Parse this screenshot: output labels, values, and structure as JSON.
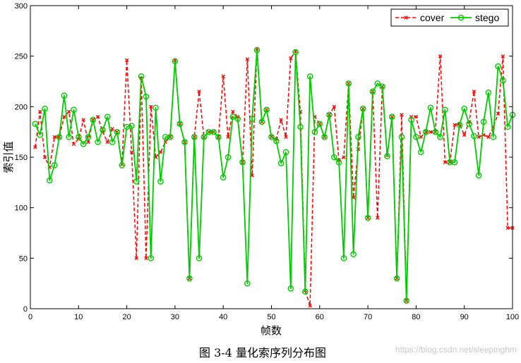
{
  "chart_data": {
    "type": "line",
    "xlabel": "帧数",
    "ylabel": "索引值",
    "xlim": [
      0,
      100
    ],
    "ylim": [
      0,
      300
    ],
    "xticks": [
      0,
      10,
      20,
      30,
      40,
      50,
      60,
      70,
      80,
      90,
      100
    ],
    "yticks": [
      0,
      50,
      100,
      150,
      200,
      250,
      300
    ],
    "legend_position": "top-right",
    "series": [
      {
        "name": "cover",
        "color": "#ff0000",
        "style": "dashed",
        "marker": "x",
        "x": [
          1,
          2,
          3,
          4,
          5,
          6,
          7,
          8,
          9,
          10,
          11,
          12,
          13,
          14,
          15,
          16,
          17,
          18,
          19,
          20,
          21,
          22,
          23,
          24,
          25,
          26,
          27,
          28,
          29,
          30,
          31,
          32,
          33,
          34,
          35,
          36,
          37,
          38,
          39,
          40,
          41,
          42,
          43,
          44,
          45,
          46,
          47,
          48,
          49,
          50,
          51,
          52,
          53,
          54,
          55,
          56,
          57,
          58,
          59,
          60,
          61,
          62,
          63,
          64,
          65,
          66,
          67,
          68,
          69,
          70,
          71,
          72,
          73,
          74,
          75,
          76,
          77,
          78,
          79,
          80,
          81,
          82,
          83,
          84,
          85,
          86,
          87,
          88,
          89,
          90,
          91,
          92,
          93,
          94,
          95,
          96,
          97,
          98,
          99,
          100
        ],
        "values": [
          160,
          195,
          150,
          140,
          170,
          170,
          190,
          195,
          163,
          168,
          187,
          165,
          187,
          190,
          175,
          165,
          178,
          175,
          143,
          246,
          155,
          50,
          228,
          50,
          200,
          150,
          155,
          165,
          170,
          246,
          183,
          165,
          30,
          170,
          215,
          170,
          175,
          175,
          170,
          230,
          170,
          195,
          190,
          145,
          247,
          132,
          257,
          185,
          197,
          170,
          168,
          187,
          170,
          248,
          255,
          195,
          18,
          3,
          190,
          183,
          170,
          192,
          200,
          147,
          150,
          223,
          110,
          158,
          198,
          90,
          215,
          90,
          220,
          152,
          190,
          30,
          192,
          8,
          190,
          190,
          170,
          175,
          175,
          175,
          250,
          145,
          145,
          182,
          183,
          172,
          185,
          215,
          170,
          172,
          170,
          180,
          193,
          250,
          80,
          80
        ]
      },
      {
        "name": "stego",
        "color": "#00cc00",
        "style": "solid",
        "marker": "o",
        "x": [
          1,
          2,
          3,
          4,
          5,
          6,
          7,
          8,
          9,
          10,
          11,
          12,
          13,
          14,
          15,
          16,
          17,
          18,
          19,
          20,
          21,
          22,
          23,
          24,
          25,
          26,
          27,
          28,
          29,
          30,
          31,
          32,
          33,
          34,
          35,
          36,
          37,
          38,
          39,
          40,
          41,
          42,
          43,
          44,
          45,
          46,
          47,
          48,
          49,
          50,
          51,
          52,
          53,
          54,
          55,
          56,
          57,
          58,
          59,
          60,
          61,
          62,
          63,
          64,
          65,
          66,
          67,
          68,
          69,
          70,
          71,
          72,
          73,
          74,
          75,
          76,
          77,
          78,
          79,
          80,
          81,
          82,
          83,
          84,
          85,
          86,
          87,
          88,
          89,
          90,
          91,
          92,
          93,
          94,
          95,
          96,
          97,
          98,
          99,
          100
        ],
        "values": [
          183,
          172,
          198,
          127,
          142,
          170,
          211,
          170,
          197,
          170,
          163,
          170,
          187,
          165,
          177,
          190,
          165,
          175,
          142,
          180,
          181,
          126,
          230,
          210,
          50,
          199,
          126,
          170,
          170,
          245,
          183,
          165,
          30,
          170,
          50,
          170,
          175,
          175,
          170,
          130,
          150,
          190,
          188,
          145,
          25,
          188,
          256,
          185,
          197,
          170,
          166,
          144,
          155,
          20,
          254,
          180,
          17,
          230,
          175,
          183,
          170,
          192,
          150,
          145,
          50,
          223,
          54,
          170,
          198,
          90,
          215,
          223,
          220,
          151,
          190,
          30,
          170,
          8,
          187,
          170,
          155,
          175,
          199,
          175,
          170,
          197,
          145,
          145,
          182,
          198,
          183,
          171,
          132,
          185,
          214,
          170,
          240,
          226,
          180,
          192
        ]
      }
    ]
  },
  "figure": {
    "caption": "图 3-4  量化索序列分布图",
    "watermark": "https://blog.csdn.net/sleepinghm"
  }
}
